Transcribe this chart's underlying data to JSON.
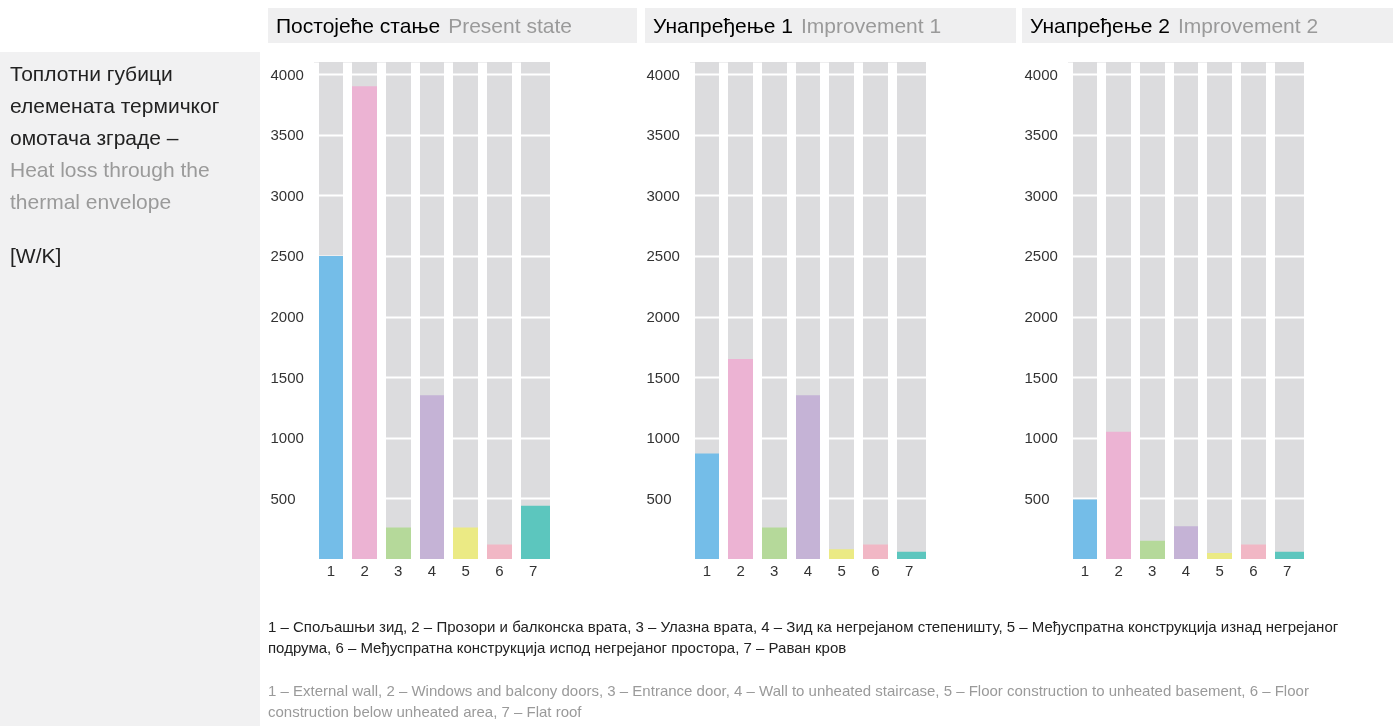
{
  "chart_data": [
    {
      "type": "bar",
      "title": "Постојеће стање",
      "subtitle": "Present state",
      "ylabel": "Топлотни губици елемената термичког омотача зграде –",
      "annotations": [
        "Heat loss through the thermal envelope",
        "[W/K]",
        "1 – Спољашњи зид, 2 – Прозори и балконска врата, 3 – Улазна врата, 4 – Зид ка негрејаном степеништу, 5 – Међуспратна конструкција изнад  негрејаног подрума, 6 – Међуспратна конструкција испод негрејаног простора, 7 – Раван кров",
        "1 – External wall, 2 – Windows and balcony doors, 3 – Entrance door, 4 – Wall to unheated staircase, 5 – Floor construction to unheated basement, 6 – Floor construction below unheated area, 7 – Flat roof"
      ],
      "categories": [
        "1",
        "2",
        "3",
        "4",
        "5",
        "6",
        "7"
      ],
      "values": [
        2500,
        3900,
        260,
        1350,
        260,
        120,
        440
      ],
      "colors": [
        "#74bde8",
        "#ecb3d3",
        "#b5d99a",
        "#c5b3d6",
        "#ebea84",
        "#f1b7c5",
        "#5cc6be"
      ],
      "ylim": [
        0,
        4100
      ],
      "yticks": [
        500,
        1000,
        1500,
        2000,
        2500,
        3000,
        3500,
        4000
      ],
      "grid": true
    },
    {
      "type": "bar",
      "title": "Унапређење 1",
      "subtitle": "Improvement 1",
      "categories": [
        "1",
        "2",
        "3",
        "4",
        "5",
        "6",
        "7"
      ],
      "values": [
        870,
        1650,
        260,
        1350,
        80,
        120,
        60
      ],
      "colors": [
        "#74bde8",
        "#ecb3d3",
        "#b5d99a",
        "#c5b3d6",
        "#ebea84",
        "#f1b7c5",
        "#5cc6be"
      ],
      "ylim": [
        0,
        4100
      ],
      "yticks": [
        500,
        1000,
        1500,
        2000,
        2500,
        3000,
        3500,
        4000
      ],
      "grid": true
    },
    {
      "type": "bar",
      "title": "Унапређење 2",
      "subtitle": "Improvement 2",
      "categories": [
        "1",
        "2",
        "3",
        "4",
        "5",
        "6",
        "7"
      ],
      "values": [
        490,
        1050,
        150,
        270,
        50,
        120,
        60
      ],
      "colors": [
        "#74bde8",
        "#ecb3d3",
        "#b5d99a",
        "#c5b3d6",
        "#ebea84",
        "#f1b7c5",
        "#5cc6be"
      ],
      "ylim": [
        0,
        4100
      ],
      "yticks": [
        500,
        1000,
        1500,
        2000,
        2500,
        3000,
        3500,
        4000
      ],
      "grid": true
    }
  ]
}
